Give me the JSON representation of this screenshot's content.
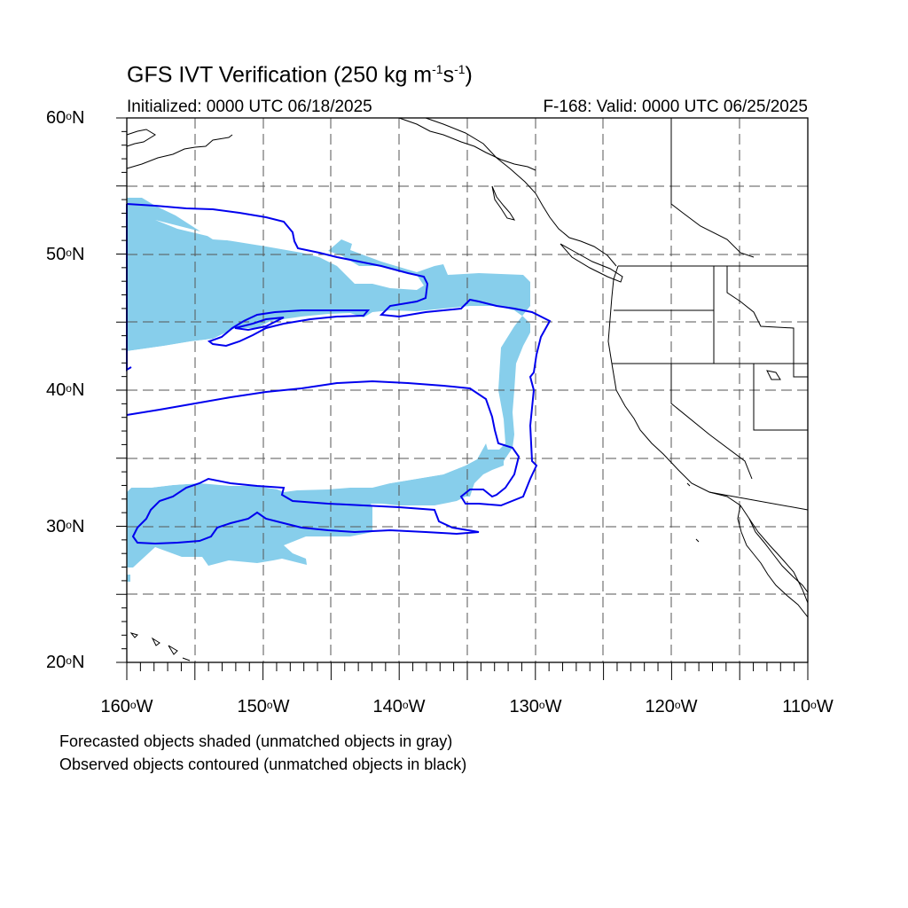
{
  "title": {
    "main": "GFS IVT Verification (250 kg m",
    "exp1": "-1",
    "mid": "s",
    "exp2": "-1",
    "end": ")"
  },
  "subtitle_left": "Initialized: 0000 UTC 06/18/2025",
  "subtitle_right": "F-168: Valid: 0000 UTC 06/25/2025",
  "lat_labels": [
    {
      "num": "60",
      "hem": "N"
    },
    {
      "num": "50",
      "hem": "N"
    },
    {
      "num": "40",
      "hem": "N"
    },
    {
      "num": "30",
      "hem": "N"
    },
    {
      "num": "20",
      "hem": "N"
    }
  ],
  "lon_labels": [
    {
      "num": "160",
      "hem": "W"
    },
    {
      "num": "150",
      "hem": "W"
    },
    {
      "num": "140",
      "hem": "W"
    },
    {
      "num": "130",
      "hem": "W"
    },
    {
      "num": "120",
      "hem": "W"
    },
    {
      "num": "110",
      "hem": "W"
    }
  ],
  "footnotes": {
    "line1": "Forecasted objects shaded (unmatched objects in gray)",
    "line2": "Observed objects contoured (unmatched objects in black)"
  },
  "map": {
    "lon_range": [
      -160,
      -110
    ],
    "lat_range": [
      20,
      60
    ],
    "gridline_interval_deg": 5,
    "projection": "cylindrical equidistant",
    "forecast_fill_color": "#87ceeb",
    "observed_contour_color": "#0000ee",
    "coastline_color": "#000000"
  }
}
